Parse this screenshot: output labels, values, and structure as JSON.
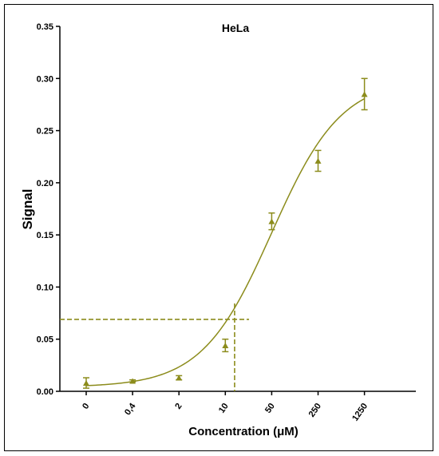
{
  "chart_data": {
    "type": "scatter",
    "title": "HeLa",
    "xlabel": "Concentration (μM)",
    "ylabel": "Signal",
    "ylim": [
      0,
      0.35
    ],
    "yticks": [
      "0.00",
      "0.05",
      "0.10",
      "0.15",
      "0.20",
      "0.25",
      "0.30",
      "0.35"
    ],
    "categories": [
      "0",
      "0,4",
      "2",
      "10",
      "50",
      "250",
      "1250"
    ],
    "series": [
      {
        "values": [
          0.008,
          0.01,
          0.013,
          0.044,
          0.163,
          0.221,
          0.285
        ],
        "error": [
          0.005,
          0.001,
          0.002,
          0.006,
          0.008,
          0.01,
          0.015
        ]
      }
    ],
    "fit_curve": {
      "bottom": 0.004,
      "top": 0.3,
      "midpoint_category_index": 4.0,
      "slope": 1.33
    },
    "reference_value": 0.069,
    "reference_category_position": 3.2,
    "grid": false,
    "colors": {
      "series": "#8c8c1c",
      "axis": "#000000"
    }
  }
}
